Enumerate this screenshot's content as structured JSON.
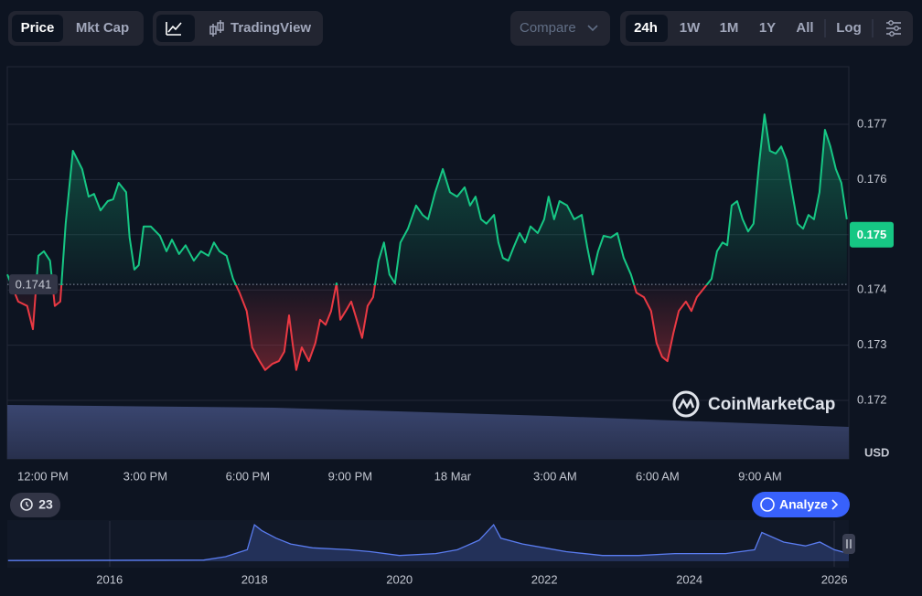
{
  "ui": {
    "tabs": [
      "Price",
      "Mkt Cap"
    ],
    "tradingview": "TradingView",
    "compare": "Compare",
    "ranges": [
      "24h",
      "1W",
      "1M",
      "1Y",
      "All"
    ],
    "log": "Log",
    "alerts": 23,
    "analyze": "Analyze"
  },
  "chart_data": [
    {
      "type": "line",
      "unit": "USD",
      "watermark": "CoinMarketCap",
      "up_color": "#16c784",
      "down_color": "#ea3943",
      "baseline": 0.1741,
      "current_price": 0.175,
      "xlim": [
        10.96,
        35.6
      ],
      "ylim": [
        0.171,
        0.178
      ],
      "xticks": [
        {
          "value": 12,
          "label": "12:00 PM"
        },
        {
          "value": 15,
          "label": "3:00 PM"
        },
        {
          "value": 18,
          "label": "6:00 PM"
        },
        {
          "value": 21,
          "label": "9:00 PM"
        },
        {
          "value": 24,
          "label": "18 Mar"
        },
        {
          "value": 27,
          "label": "3:00 AM"
        },
        {
          "value": 30,
          "label": "6:00 AM"
        },
        {
          "value": 33,
          "label": "9:00 AM"
        }
      ],
      "yticks": [
        0.172,
        0.173,
        0.174,
        0.175,
        0.176,
        0.177
      ],
      "x": [
        10.96,
        11.28,
        11.54,
        11.71,
        11.87,
        12.03,
        12.21,
        12.35,
        12.51,
        12.67,
        12.88,
        13.15,
        13.34,
        13.5,
        13.69,
        13.9,
        14.06,
        14.22,
        14.44,
        14.54,
        14.68,
        14.81,
        14.95,
        15.16,
        15.43,
        15.62,
        15.78,
        15.99,
        16.18,
        16.42,
        16.63,
        16.85,
        17.01,
        17.17,
        17.38,
        17.57,
        17.76,
        17.97,
        18.13,
        18.35,
        18.51,
        18.72,
        18.91,
        19.07,
        19.21,
        19.31,
        19.42,
        19.58,
        19.79,
        19.98,
        20.12,
        20.28,
        20.44,
        20.6,
        20.71,
        20.87,
        21.03,
        21.19,
        21.35,
        21.51,
        21.67,
        21.83,
        21.99,
        22.15,
        22.31,
        22.47,
        22.69,
        22.93,
        23.12,
        23.28,
        23.49,
        23.71,
        23.92,
        24.13,
        24.35,
        24.51,
        24.67,
        24.83,
        24.99,
        25.21,
        25.34,
        25.47,
        25.63,
        25.79,
        25.96,
        26.12,
        26.28,
        26.49,
        26.68,
        26.81,
        26.97,
        27.13,
        27.35,
        27.56,
        27.78,
        27.94,
        28.1,
        28.26,
        28.42,
        28.63,
        28.82,
        29.01,
        29.22,
        29.38,
        29.6,
        29.81,
        29.97,
        30.13,
        30.29,
        30.46,
        30.62,
        30.83,
        30.99,
        31.15,
        31.37,
        31.58,
        31.74,
        31.9,
        32.04,
        32.17,
        32.33,
        32.49,
        32.65,
        32.81,
        32.97,
        33.13,
        33.29,
        33.46,
        33.62,
        33.78,
        33.94,
        34.1,
        34.26,
        34.42,
        34.58,
        34.74,
        34.9,
        35.06,
        35.22,
        35.38,
        35.54
      ],
      "values": [
        0.17428,
        0.17379,
        0.17371,
        0.17329,
        0.17462,
        0.1747,
        0.17453,
        0.17371,
        0.17379,
        0.1752,
        0.17652,
        0.17619,
        0.17569,
        0.17574,
        0.17544,
        0.17561,
        0.17564,
        0.17594,
        0.17577,
        0.17495,
        0.17437,
        0.17445,
        0.17515,
        0.17515,
        0.17498,
        0.1747,
        0.17491,
        0.17465,
        0.17481,
        0.17453,
        0.1747,
        0.17462,
        0.17486,
        0.1747,
        0.17462,
        0.1742,
        0.17395,
        0.17362,
        0.17296,
        0.17271,
        0.17255,
        0.17266,
        0.17271,
        0.17288,
        0.17354,
        0.17304,
        0.17255,
        0.17296,
        0.17271,
        0.17304,
        0.17346,
        0.17337,
        0.17362,
        0.17412,
        0.17346,
        0.17362,
        0.17379,
        0.17346,
        0.17313,
        0.17371,
        0.17387,
        0.17453,
        0.17486,
        0.17428,
        0.17412,
        0.17486,
        0.17511,
        0.17553,
        0.17536,
        0.17528,
        0.17577,
        0.17619,
        0.17577,
        0.17569,
        0.17586,
        0.17553,
        0.17569,
        0.17528,
        0.1752,
        0.17536,
        0.17486,
        0.17458,
        0.17453,
        0.17478,
        0.17503,
        0.17486,
        0.17515,
        0.17503,
        0.17528,
        0.17569,
        0.17528,
        0.17561,
        0.17553,
        0.17528,
        0.17536,
        0.17478,
        0.17428,
        0.1747,
        0.17498,
        0.17495,
        0.17503,
        0.17458,
        0.17428,
        0.17395,
        0.17387,
        0.17362,
        0.17304,
        0.17279,
        0.17271,
        0.17321,
        0.17362,
        0.17379,
        0.17362,
        0.17387,
        0.17404,
        0.1742,
        0.1747,
        0.17486,
        0.17481,
        0.17553,
        0.17561,
        0.17528,
        0.17506,
        0.1752,
        0.17627,
        0.17718,
        0.17652,
        0.17647,
        0.1766,
        0.17635,
        0.17577,
        0.1752,
        0.17511,
        0.17536,
        0.17528,
        0.17577,
        0.1769,
        0.1766,
        0.17619,
        0.17594,
        0.17528
      ]
    },
    {
      "type": "area",
      "color": "#5a7cf0",
      "xlim": [
        2014.59,
        2026.2
      ],
      "ylim": [
        0,
        1
      ],
      "xticks": [
        2016,
        2018,
        2020,
        2022,
        2024,
        2026
      ],
      "x": [
        2014.6,
        2017.3,
        2017.6,
        2017.9,
        2018.0,
        2018.1,
        2018.3,
        2018.5,
        2018.8,
        2019.3,
        2019.6,
        2020.0,
        2020.5,
        2020.8,
        2021.1,
        2021.3,
        2021.4,
        2021.7,
        2022.0,
        2022.3,
        2022.8,
        2023.3,
        2023.8,
        2024.5,
        2024.9,
        2025.0,
        2025.3,
        2025.6,
        2025.8,
        2026.0,
        2026.2
      ],
      "values": [
        0.02,
        0.03,
        0.12,
        0.3,
        0.95,
        0.8,
        0.6,
        0.45,
        0.35,
        0.3,
        0.25,
        0.15,
        0.2,
        0.3,
        0.55,
        0.95,
        0.6,
        0.45,
        0.35,
        0.25,
        0.15,
        0.15,
        0.2,
        0.2,
        0.3,
        0.75,
        0.5,
        0.4,
        0.5,
        0.3,
        0.2
      ]
    }
  ]
}
